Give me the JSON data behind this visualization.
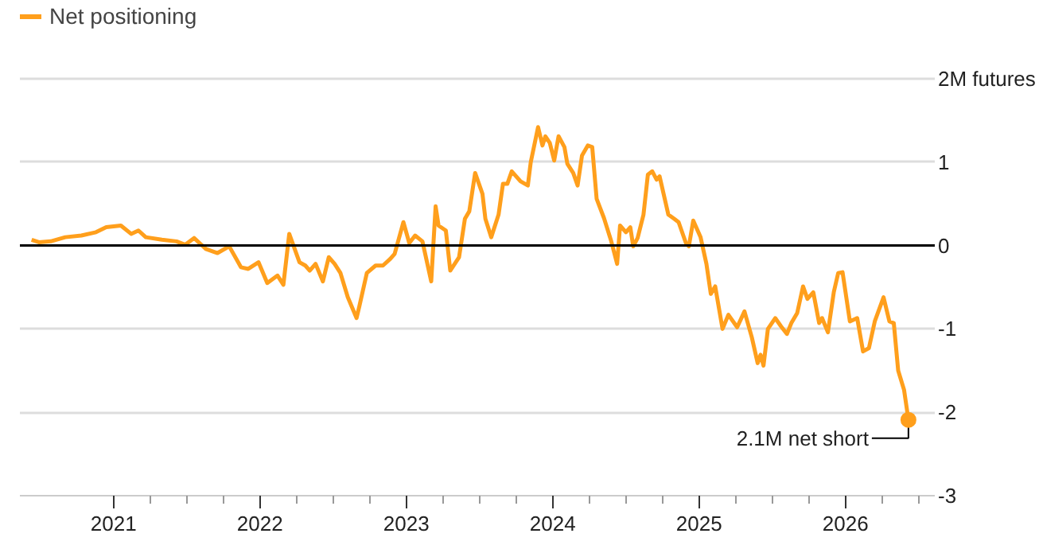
{
  "chart_data": {
    "type": "line",
    "x": [
      2020.44,
      2020.49,
      2020.57,
      2020.67,
      2020.78,
      2020.88,
      2020.95,
      2021.05,
      2021.12,
      2021.17,
      2021.22,
      2021.33,
      2021.43,
      2021.49,
      2021.55,
      2021.63,
      2021.71,
      2021.79,
      2021.87,
      2021.92,
      2021.99,
      2022.05,
      2022.12,
      2022.16,
      2022.2,
      2022.27,
      2022.31,
      2022.34,
      2022.38,
      2022.43,
      2022.47,
      2022.51,
      2022.55,
      2022.6,
      2022.66,
      2022.68,
      2022.73,
      2022.79,
      2022.84,
      2022.89,
      2022.92,
      2022.98,
      2023.02,
      2023.06,
      2023.11,
      2023.17,
      2023.2,
      2023.22,
      2023.27,
      2023.3,
      2023.36,
      2023.4,
      2023.43,
      2023.47,
      2023.52,
      2023.54,
      2023.58,
      2023.63,
      2023.66,
      2023.69,
      2023.72,
      2023.78,
      2023.83,
      2023.85,
      2023.9,
      2023.93,
      2023.95,
      2023.98,
      2024.01,
      2024.04,
      2024.08,
      2024.1,
      2024.14,
      2024.17,
      2024.2,
      2024.24,
      2024.27,
      2024.3,
      2024.35,
      2024.4,
      2024.44,
      2024.46,
      2024.5,
      2024.53,
      2024.55,
      2024.58,
      2024.62,
      2024.65,
      2024.68,
      2024.71,
      2024.73,
      2024.79,
      2024.83,
      2024.86,
      2024.91,
      2024.93,
      2024.96,
      2025.01,
      2025.05,
      2025.08,
      2025.11,
      2025.16,
      2025.2,
      2025.26,
      2025.31,
      2025.36,
      2025.4,
      2025.42,
      2025.44,
      2025.47,
      2025.52,
      2025.56,
      2025.6,
      2025.63,
      2025.67,
      2025.71,
      2025.74,
      2025.78,
      2025.82,
      2025.84,
      2025.88,
      2025.92,
      2025.95,
      2025.98,
      2026.03,
      2026.08,
      2026.12,
      2026.16,
      2026.2,
      2026.26,
      2026.3,
      2026.33,
      2026.36,
      2026.4,
      2026.43
    ],
    "series": [
      {
        "name": "Net positioning",
        "color": "#ff9f1c",
        "values": [
          0.07,
          0.04,
          0.05,
          0.1,
          0.12,
          0.16,
          0.22,
          0.24,
          0.14,
          0.18,
          0.1,
          0.07,
          0.05,
          0.01,
          0.09,
          -0.04,
          -0.09,
          -0.01,
          -0.26,
          -0.28,
          -0.2,
          -0.45,
          -0.36,
          -0.47,
          0.14,
          -0.2,
          -0.24,
          -0.3,
          -0.22,
          -0.43,
          -0.14,
          -0.22,
          -0.33,
          -0.62,
          -0.87,
          -0.72,
          -0.33,
          -0.24,
          -0.24,
          -0.16,
          -0.1,
          0.28,
          0.03,
          0.12,
          0.05,
          -0.43,
          0.47,
          0.24,
          0.18,
          -0.3,
          -0.14,
          0.32,
          0.41,
          0.87,
          0.62,
          0.32,
          0.1,
          0.37,
          0.74,
          0.74,
          0.89,
          0.77,
          0.72,
          1.0,
          1.42,
          1.2,
          1.31,
          1.23,
          1.02,
          1.31,
          1.18,
          0.98,
          0.87,
          0.72,
          1.08,
          1.2,
          1.18,
          0.56,
          0.33,
          0.05,
          -0.22,
          0.24,
          0.16,
          0.22,
          -0.01,
          0.09,
          0.37,
          0.85,
          0.89,
          0.79,
          0.83,
          0.37,
          0.32,
          0.28,
          0.03,
          -0.01,
          0.3,
          0.1,
          -0.22,
          -0.58,
          -0.49,
          -1.0,
          -0.83,
          -0.98,
          -0.79,
          -1.1,
          -1.41,
          -1.31,
          -1.44,
          -1.0,
          -0.87,
          -0.97,
          -1.06,
          -0.93,
          -0.81,
          -0.49,
          -0.64,
          -0.56,
          -0.93,
          -0.87,
          -1.04,
          -0.56,
          -0.33,
          -0.32,
          -0.91,
          -0.87,
          -1.27,
          -1.23,
          -0.91,
          -0.62,
          -0.91,
          -0.93,
          -1.5,
          -1.73,
          -2.09
        ]
      }
    ],
    "xlim": [
      2020.36,
      2026.61
    ],
    "xticks": [
      {
        "value": 2021,
        "label": "2021"
      },
      {
        "value": 2021.25,
        "label": null
      },
      {
        "value": 2021.5,
        "label": null
      },
      {
        "value": 2021.75,
        "label": null
      },
      {
        "value": 2022,
        "label": "2022"
      },
      {
        "value": 2022.25,
        "label": null
      },
      {
        "value": 2022.5,
        "label": null
      },
      {
        "value": 2022.75,
        "label": null
      },
      {
        "value": 2023,
        "label": "2023"
      },
      {
        "value": 2023.25,
        "label": null
      },
      {
        "value": 2023.5,
        "label": null
      },
      {
        "value": 2023.75,
        "label": null
      },
      {
        "value": 2024,
        "label": "2024"
      },
      {
        "value": 2024.25,
        "label": null
      },
      {
        "value": 2024.5,
        "label": null
      },
      {
        "value": 2024.75,
        "label": null
      },
      {
        "value": 2025,
        "label": "2025"
      },
      {
        "value": 2025.25,
        "label": null
      },
      {
        "value": 2025.5,
        "label": null
      },
      {
        "value": 2025.75,
        "label": null
      },
      {
        "value": 2026,
        "label": "2026"
      },
      {
        "value": 2026.25,
        "label": null
      },
      {
        "value": 2026.5,
        "label": null
      }
    ],
    "ylim": [
      -3,
      2
    ],
    "yticks": [
      {
        "value": 2,
        "label": "2M futures"
      },
      1,
      0,
      -1,
      -2,
      -3
    ],
    "ref_lines": [
      {
        "axis": "y",
        "value": 0,
        "color": "#000000"
      }
    ],
    "annotations": [
      {
        "text": "2.1M net short",
        "x": 2026.43,
        "y": -2.09
      }
    ],
    "grid": "y",
    "legend": "top left",
    "line_style": "solid",
    "marker": "none"
  }
}
